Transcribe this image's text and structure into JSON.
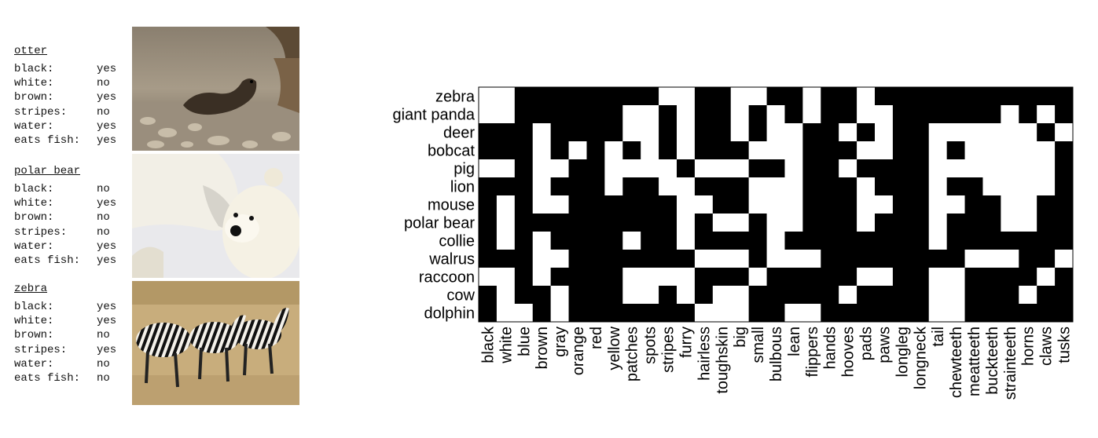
{
  "animals": [
    {
      "name": "otter",
      "attrs": [
        {
          "key": "black:",
          "val": "yes"
        },
        {
          "key": "white:",
          "val": "no"
        },
        {
          "key": "brown:",
          "val": "yes"
        },
        {
          "key": "stripes:",
          "val": "no"
        },
        {
          "key": "water:",
          "val": "yes"
        },
        {
          "key": "eats fish:",
          "val": "yes"
        }
      ]
    },
    {
      "name": "polar bear",
      "attrs": [
        {
          "key": "black:",
          "val": "no"
        },
        {
          "key": "white:",
          "val": "yes"
        },
        {
          "key": "brown:",
          "val": "no"
        },
        {
          "key": "stripes:",
          "val": "no"
        },
        {
          "key": "water:",
          "val": "yes"
        },
        {
          "key": "eats fish:",
          "val": "yes"
        }
      ]
    },
    {
      "name": "zebra",
      "attrs": [
        {
          "key": "black:",
          "val": "yes"
        },
        {
          "key": "white:",
          "val": "yes"
        },
        {
          "key": "brown:",
          "val": "no"
        },
        {
          "key": "stripes:",
          "val": "yes"
        },
        {
          "key": "water:",
          "val": "no"
        },
        {
          "key": "eats fish:",
          "val": "no"
        }
      ]
    }
  ],
  "photos": [
    "otter-photo",
    "polar-bear-photo",
    "zebra-photo"
  ],
  "chart_data": {
    "type": "heatmap",
    "rows": [
      "zebra",
      "giant panda",
      "deer",
      "bobcat",
      "pig",
      "lion",
      "mouse",
      "polar bear",
      "collie",
      "walrus",
      "raccoon",
      "cow",
      "dolphin"
    ],
    "columns": [
      "black",
      "white",
      "blue",
      "brown",
      "gray",
      "orange",
      "red",
      "yellow",
      "patches",
      "spots",
      "stripes",
      "furry",
      "hairless",
      "toughskin",
      "big",
      "small",
      "bulbous",
      "lean",
      "flippers",
      "hands",
      "hooves",
      "pads",
      "paws",
      "longleg",
      "longneck",
      "tail",
      "chewteeth",
      "meatteeth",
      "buckteeth",
      "strainteeth",
      "horns",
      "claws",
      "tusks"
    ],
    "matrix": [
      [
        1,
        1,
        0,
        0,
        0,
        0,
        0,
        0,
        0,
        0,
        1,
        1,
        0,
        0,
        1,
        1,
        0,
        0,
        1,
        0,
        0,
        1,
        0,
        0,
        0,
        0,
        0,
        0,
        0,
        0,
        0,
        0,
        0
      ],
      [
        1,
        1,
        0,
        0,
        0,
        0,
        0,
        0,
        1,
        1,
        0,
        1,
        0,
        0,
        1,
        0,
        1,
        0,
        1,
        0,
        0,
        1,
        1,
        0,
        0,
        0,
        0,
        0,
        0,
        1,
        0,
        1,
        0
      ],
      [
        0,
        0,
        0,
        1,
        0,
        0,
        0,
        0,
        1,
        1,
        0,
        1,
        0,
        0,
        1,
        0,
        1,
        1,
        0,
        0,
        1,
        0,
        1,
        0,
        0,
        1,
        1,
        1,
        1,
        1,
        1,
        0,
        1
      ],
      [
        0,
        0,
        0,
        1,
        0,
        1,
        0,
        1,
        0,
        1,
        0,
        1,
        0,
        0,
        0,
        1,
        1,
        1,
        0,
        0,
        0,
        1,
        1,
        0,
        0,
        1,
        0,
        1,
        1,
        1,
        1,
        1,
        0
      ],
      [
        1,
        1,
        0,
        1,
        1,
        0,
        0,
        1,
        1,
        1,
        1,
        0,
        1,
        1,
        1,
        0,
        0,
        1,
        0,
        0,
        1,
        0,
        0,
        0,
        0,
        1,
        1,
        1,
        1,
        1,
        1,
        1,
        0
      ],
      [
        0,
        0,
        0,
        1,
        0,
        0,
        0,
        1,
        0,
        0,
        1,
        1,
        0,
        0,
        0,
        1,
        1,
        1,
        0,
        0,
        0,
        1,
        0,
        0,
        0,
        1,
        0,
        0,
        1,
        1,
        1,
        1,
        0
      ],
      [
        0,
        1,
        0,
        1,
        1,
        0,
        0,
        0,
        0,
        0,
        0,
        1,
        1,
        0,
        0,
        1,
        1,
        1,
        0,
        0,
        0,
        1,
        1,
        0,
        0,
        1,
        1,
        0,
        0,
        1,
        1,
        0,
        0
      ],
      [
        0,
        1,
        0,
        0,
        0,
        0,
        0,
        0,
        0,
        0,
        0,
        1,
        0,
        1,
        1,
        0,
        1,
        1,
        0,
        0,
        0,
        1,
        0,
        0,
        0,
        1,
        0,
        0,
        0,
        1,
        1,
        0,
        0
      ],
      [
        0,
        1,
        0,
        1,
        0,
        0,
        0,
        0,
        1,
        0,
        0,
        1,
        0,
        0,
        0,
        0,
        1,
        0,
        0,
        0,
        0,
        0,
        0,
        0,
        0,
        1,
        0,
        0,
        0,
        0,
        0,
        0,
        0
      ],
      [
        0,
        0,
        0,
        1,
        1,
        0,
        0,
        0,
        0,
        0,
        0,
        0,
        1,
        1,
        1,
        0,
        1,
        1,
        1,
        0,
        0,
        0,
        0,
        0,
        0,
        0,
        0,
        1,
        1,
        1,
        0,
        0,
        1
      ],
      [
        1,
        1,
        0,
        1,
        0,
        0,
        0,
        0,
        1,
        1,
        1,
        1,
        0,
        0,
        0,
        1,
        0,
        0,
        0,
        0,
        0,
        1,
        1,
        0,
        0,
        1,
        1,
        0,
        0,
        0,
        0,
        1,
        0
      ],
      [
        0,
        1,
        0,
        0,
        1,
        0,
        0,
        0,
        1,
        1,
        0,
        1,
        0,
        1,
        1,
        0,
        0,
        0,
        0,
        0,
        1,
        0,
        0,
        0,
        0,
        1,
        1,
        0,
        0,
        0,
        1,
        0,
        0
      ],
      [
        0,
        1,
        1,
        0,
        1,
        0,
        0,
        0,
        0,
        0,
        0,
        0,
        1,
        1,
        1,
        0,
        0,
        1,
        1,
        0,
        0,
        0,
        0,
        0,
        0,
        1,
        1,
        0,
        0,
        0,
        0,
        0,
        0
      ]
    ]
  }
}
